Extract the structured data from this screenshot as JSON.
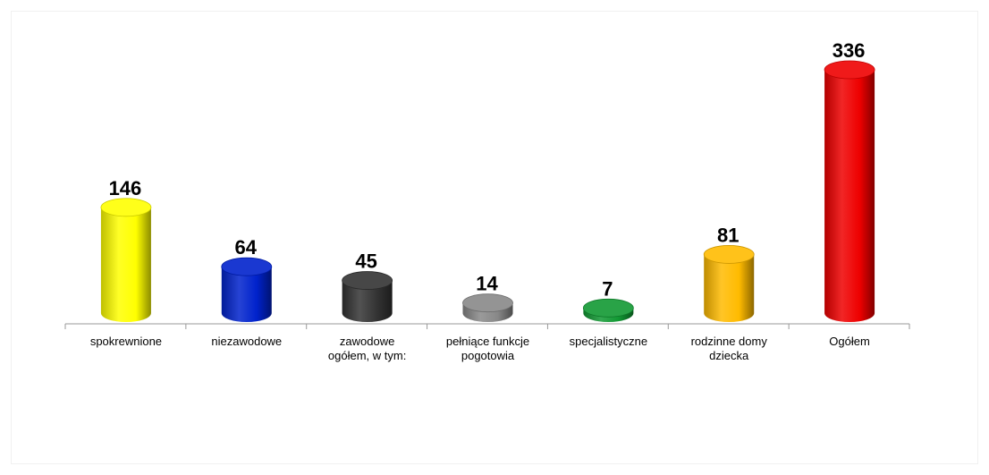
{
  "chart_data": {
    "type": "bar",
    "categories": [
      [
        "spokrewnione"
      ],
      [
        "niezawodowe"
      ],
      [
        "zawodowe",
        "ogółem, w tym:"
      ],
      [
        "pełniące funkcje",
        "pogotowia"
      ],
      [
        "specjalistyczne"
      ],
      [
        "rodzinne domy",
        "dziecka"
      ],
      [
        "Ogółem"
      ]
    ],
    "values": [
      146,
      64,
      45,
      14,
      7,
      81,
      336
    ],
    "colors": [
      "#ffff00",
      "#0022cc",
      "#333333",
      "#888888",
      "#119933",
      "#ffbb00",
      "#ee0000"
    ],
    "ylim": [
      0,
      336
    ],
    "grid": false,
    "legend": "none",
    "title": "",
    "xlabel": "",
    "ylabel": ""
  }
}
